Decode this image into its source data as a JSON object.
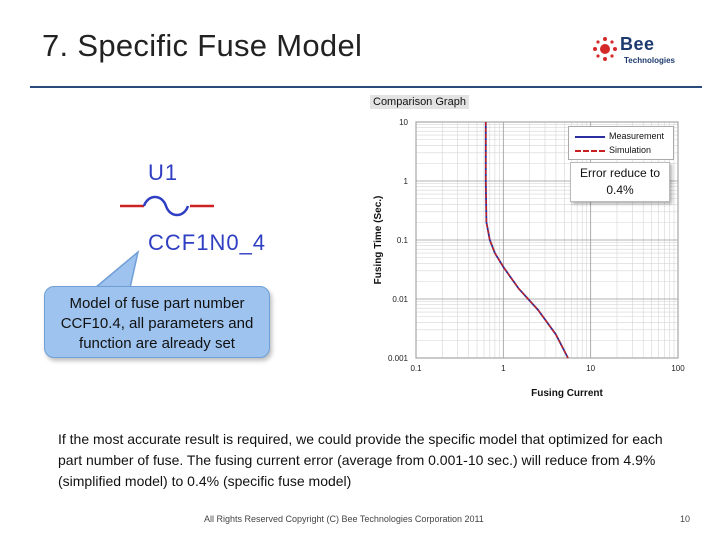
{
  "slide": {
    "title": "7. Specific Fuse Model",
    "logo_name": "Bee",
    "logo_sub": "Technologies",
    "part_ref": "U1",
    "part_number": "CCF1N0_4",
    "callout": "Model of fuse part number CCF10.4, all parameters and function are already set",
    "graph_title": "Comparison Graph",
    "error_note": "Error reduce to 0.4%",
    "body": "If the most accurate result is required, we could provide the specific model that optimized for each part number of fuse. The fusing current error (average from 0.001-10 sec.) will reduce from 4.9% (simplified model) to 0.4% (specific fuse model)",
    "footer": "All Rights Reserved Copyright (C) Bee Technologies Corporation 2011",
    "page_number": "10"
  },
  "colors": {
    "title_rule": "#2a4a7b",
    "symbol_text": "#2f3ec2",
    "fuse_wire": "#cc2222",
    "fuse_body": "#2f3ec2",
    "callout_fill": "#9ec3ee",
    "measurement": "#2b2f9e",
    "simulation": "#c82020"
  },
  "chart_data": {
    "type": "line",
    "title": "",
    "xlabel": "Fusing Current",
    "ylabel": "Fusing Time (Sec.)",
    "xscale": "log",
    "yscale": "log",
    "xlim": [
      0.1,
      100
    ],
    "ylim": [
      0.001,
      10
    ],
    "x_ticks": [
      "0.1",
      "1",
      "10",
      "100"
    ],
    "y_ticks": [
      "0.001",
      "0.01",
      "0.1",
      "1",
      "10"
    ],
    "grid": true,
    "legend_position": "top-right",
    "series": [
      {
        "name": "Measurement",
        "style": "solid",
        "x": [
          0.63,
          0.63,
          0.64,
          0.7,
          0.8,
          1.0,
          1.5,
          2.5,
          4.0,
          5.5
        ],
        "y": [
          10,
          1,
          0.2,
          0.1,
          0.06,
          0.035,
          0.015,
          0.0065,
          0.0025,
          0.001
        ]
      },
      {
        "name": "Simulation",
        "style": "dashed",
        "x": [
          0.63,
          0.63,
          0.64,
          0.7,
          0.8,
          1.0,
          1.5,
          2.5,
          4.0,
          5.5
        ],
        "y": [
          10,
          1,
          0.2,
          0.1,
          0.06,
          0.035,
          0.015,
          0.0065,
          0.0025,
          0.001
        ]
      }
    ]
  }
}
